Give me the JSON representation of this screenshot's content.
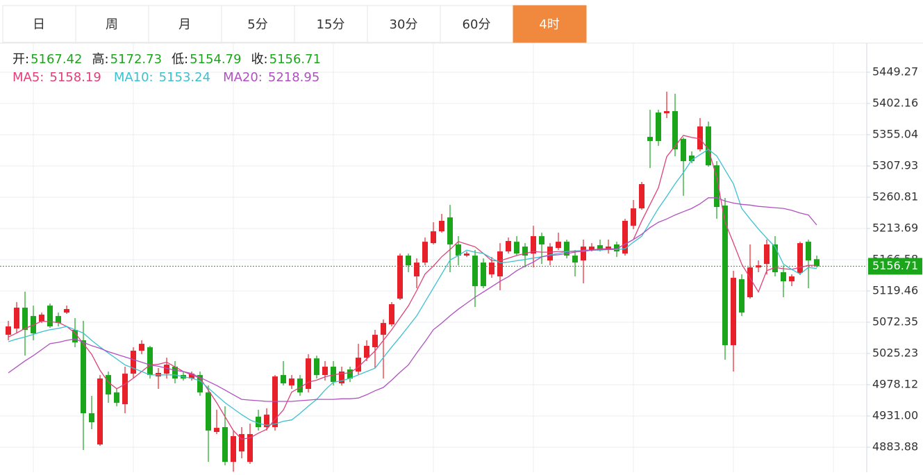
{
  "chart_data": {
    "type": "candlestick",
    "tabs": [
      "日",
      "周",
      "月",
      "5分",
      "15分",
      "30分",
      "60分",
      "4时"
    ],
    "active_tab": 7,
    "ohlc_labels": [
      "开:",
      "高:",
      "低:",
      "收:"
    ],
    "ylim": [
      4846.19,
      5493.24
    ],
    "yticks": [
      4883.88,
      {
        "value": 4931,
        "label": "4931.00"
      },
      4978.12,
      5025.23,
      5072.35,
      5119.46,
      5166.58,
      5213.69,
      5260.81,
      5307.93,
      5355.04,
      5402.16,
      5449.27
    ],
    "grid": true,
    "up_color": "#e8202a",
    "down_color": "#1aa51a",
    "candles": {
      "open": [
        5053.4,
        5062.9,
        5094.3,
        5081.7,
        5073.3,
        5097.4,
        5081.7,
        5086.9,
        5060.8,
        5045.1,
        4935.1,
        4888.0,
        4992.7,
        4966.5,
        4948.7,
        4994.8,
        5029.4,
        5034.6,
        4990.6,
        4994.8,
        5005.3,
        4992.7,
        4987.5,
        4992.7,
        4966.5,
        4906.9,
        4914.2,
        4861.8,
        4877.5,
        4861.8,
        4929.9,
        4914.2,
        4914.2,
        4992.7,
        4977.0,
        4987.5,
        4971.8,
        5017.8,
        4992.7,
        5005.3,
        4980.2,
        5001.1,
        4998.0,
        5018.9,
        5034.6,
        5053.4,
        5069.2,
        5107.9,
        5172.8,
        5141.4,
        5162.3,
        5191.6,
        5209.4,
        5230.4,
        5189.6,
        5172.8,
        5172.8,
        5162.3,
        5144.5,
        5141.4,
        5179.1,
        5193.7,
        5186.4,
        5175.9,
        5202.1,
        5165.5,
        5184.3,
        5193.7,
        5172.8,
        5165.5,
        5181.2,
        5188.5,
        5181.2,
        5189.6,
        5175.9,
        5217.8,
        5244.0,
        5351.8,
        5388.5,
        5387.4,
        5390.6,
        5348.7,
        5323.6,
        5333.0,
        5367.5,
        5308.9,
        5248.2,
        5037.7,
        5137.2,
        5110.0,
        5155.0,
        5160.2,
        5189.6,
        5147.7,
        5134.1,
        5146.6,
        5193.7,
        5167.42
      ],
      "high": [
        5074.4,
        5102.7,
        5118.4,
        5097.4,
        5086.9,
        5100.6,
        5086.9,
        5097.4,
        5078.6,
        5074.4,
        4961.3,
        4992.7,
        4998.0,
        4971.8,
        5005.3,
        5034.6,
        5045.1,
        5036.7,
        5003.2,
        5018.9,
        5013.7,
        4998.0,
        4998.0,
        4998.0,
        4977.0,
        4940.4,
        4945.6,
        4909.0,
        4914.2,
        4919.4,
        4940.4,
        4942.5,
        4992.7,
        5013.7,
        4992.7,
        4992.7,
        5024.1,
        5022.0,
        5013.7,
        5013.7,
        5005.3,
        5005.3,
        5039.8,
        5045.1,
        5060.8,
        5076.5,
        5102.7,
        5175.9,
        5175.9,
        5168.6,
        5200.0,
        5223.1,
        5235.6,
        5249.2,
        5202.1,
        5179.1,
        5181.2,
        5168.6,
        5170.7,
        5191.6,
        5200.0,
        5202.1,
        5191.6,
        5217.8,
        5207.4,
        5191.6,
        5207.4,
        5196.9,
        5181.2,
        5196.9,
        5191.6,
        5196.9,
        5196.9,
        5193.7,
        5228.3,
        5256.6,
        5283.8,
        5392.7,
        5392.7,
        5419.9,
        5416.8,
        5350.8,
        5329.9,
        5380.1,
        5374.9,
        5315.2,
        5259.7,
        5149.8,
        5144.5,
        5189.6,
        5165.5,
        5196.9,
        5202.1,
        5158.1,
        5144.5,
        5193.7,
        5196.9,
        5172.73
      ],
      "low": [
        5045.1,
        5055.5,
        5022.0,
        5045.1,
        5071.2,
        5063.9,
        5066.0,
        5084.9,
        5034.6,
        4879.6,
        4911.1,
        4885.9,
        4950.8,
        4945.6,
        4935.1,
        4987.5,
        5024.1,
        4987.5,
        4971.8,
        4987.5,
        4980.2,
        4984.3,
        4984.3,
        4961.3,
        4861.8,
        4903.7,
        4856.6,
        4847.0,
        4867.1,
        4858.7,
        4909.0,
        4909.0,
        4909.0,
        4977.0,
        4971.8,
        4961.3,
        4966.5,
        4987.5,
        4984.3,
        4977.0,
        4977.0,
        4982.2,
        4992.7,
        5013.7,
        5003.2,
        4987.5,
        5066.0,
        5105.8,
        5147.7,
        5123.6,
        5158.1,
        5189.6,
        5207.4,
        5147.7,
        5158.1,
        5170.7,
        5095.3,
        5123.6,
        5139.3,
        5120.5,
        5175.9,
        5172.8,
        5155.0,
        5155.0,
        5160.2,
        5158.1,
        5181.2,
        5168.6,
        5141.4,
        5130.9,
        5179.1,
        5179.1,
        5175.9,
        5170.7,
        5172.8,
        5212.6,
        5241.9,
        5304.7,
        5338.2,
        5380.1,
        5322.5,
        5262.8,
        5312.1,
        5329.9,
        5306.8,
        5228.3,
        5015.8,
        4998.0,
        5081.7,
        5107.9,
        5147.7,
        5144.5,
        5141.4,
        5110.0,
        5126.7,
        5143.5,
        5123.6,
        5154.79
      ],
      "close": [
        5066.0,
        5094.3,
        5060.8,
        5055.5,
        5083.8,
        5066.0,
        5071.2,
        5092.2,
        5041.9,
        4935.1,
        4921.5,
        4987.5,
        4963.4,
        4950.8,
        4994.8,
        5029.4,
        5039.8,
        4992.7,
        4995.9,
        5008.4,
        4987.5,
        4987.5,
        4994.8,
        4966.5,
        4909.0,
        4913.1,
        4861.8,
        4900.6,
        4903.7,
        4903.7,
        4914.2,
        4933.0,
        4990.6,
        4980.2,
        4987.5,
        4966.5,
        5017.8,
        4992.7,
        5005.3,
        4982.2,
        4998.0,
        4987.5,
        5018.9,
        5036.7,
        5053.4,
        5071.2,
        5099.5,
        5172.8,
        5158.1,
        5162.3,
        5193.7,
        5209.4,
        5225.2,
        5189.6,
        5172.8,
        5175.9,
        5126.7,
        5126.7,
        5162.3,
        5179.1,
        5194.8,
        5175.9,
        5172.8,
        5202.1,
        5189.6,
        5186.4,
        5193.7,
        5172.8,
        5162.3,
        5186.4,
        5186.4,
        5181.2,
        5186.4,
        5179.1,
        5225.2,
        5244.0,
        5280.6,
        5345.6,
        5345.6,
        5390.6,
        5333.0,
        5315.2,
        5315.2,
        5367.5,
        5308.9,
        5246.1,
        5037.7,
        5139.3,
        5086.9,
        5155.0,
        5158.1,
        5189.6,
        5147.7,
        5134.1,
        5141.4,
        5191.6,
        5165.5,
        5156.71
      ]
    },
    "series": [
      {
        "name": "MA5:",
        "color": "#e0407a",
        "values": [
          5050,
          5056,
          5063,
          5068,
          5074,
          5073,
          5072,
          5066,
          5056,
          5040,
          5024,
          5000,
          4982,
          4972,
          4979,
          4988,
          4998,
          5008,
          5009,
          5012,
          5005,
          4998,
          4993,
          4988,
          4970,
          4951,
          4930,
          4909,
          4896,
          4898,
          4905,
          4911,
          4926,
          4940,
          4967,
          4974,
          4982,
          4985,
          4990,
          4993,
          4995,
          4996,
          5005,
          5017,
          5029,
          5045,
          5061,
          5079,
          5097,
          5120,
          5145,
          5157,
          5171,
          5182,
          5194,
          5190,
          5186,
          5176,
          5165,
          5165,
          5169,
          5173,
          5176,
          5179,
          5178,
          5178,
          5179,
          5179,
          5179,
          5179,
          5181,
          5183,
          5183,
          5183,
          5190,
          5197,
          5225,
          5250,
          5275,
          5322,
          5338,
          5354,
          5351,
          5349,
          5333,
          5291,
          5223,
          5192,
          5160,
          5139,
          5118,
          5150,
          5155,
          5153,
          5152,
          5155,
          5158,
          5158.19
        ]
      },
      {
        "name": "MA10:",
        "color": "#3cc0d0",
        "values": [
          5043,
          5047,
          5050,
          5054,
          5058,
          5061,
          5063,
          5066,
          5061,
          5056,
          5045,
          5035,
          5026,
          5017,
          5008,
          5003,
          4998,
          4993,
          4993,
          4993,
          4993,
          4990,
          4988,
          4984,
          4973,
          4962,
          4951,
          4942,
          4933,
          4925,
          4920,
          4917,
          4919,
          4923,
          4925,
          4935,
          4946,
          4956,
          4970,
          4982,
          4984,
          4988,
          4993,
          4998,
          5003,
          5019,
          5035,
          5050,
          5066,
          5082,
          5103,
          5124,
          5145,
          5166,
          5173,
          5181,
          5178,
          5176,
          5169,
          5162,
          5163,
          5165,
          5167,
          5169,
          5171,
          5174,
          5176,
          5179,
          5180,
          5180,
          5181,
          5181,
          5182,
          5182,
          5183,
          5193,
          5202,
          5223,
          5244,
          5262,
          5281,
          5298,
          5317,
          5325,
          5333,
          5323,
          5302,
          5281,
          5244,
          5228,
          5213,
          5199,
          5186,
          5160,
          5152,
          5145,
          5155,
          5153.24
        ]
      },
      {
        "name": "MA20:",
        "color": "#b050c0",
        "values": [
          4996,
          5005,
          5014,
          5022,
          5031,
          5040,
          5042,
          5045,
          5047,
          5042,
          5037,
          5033,
          5028,
          5024,
          5020,
          5016,
          5012,
          5008,
          5006,
          5003,
          5000,
          4998,
          4995,
          4989,
          4983,
          4977,
          4970,
          4963,
          4956,
          4955,
          4954,
          4953,
          4953,
          4953,
          4953,
          4954,
          4955,
          4956,
          4956,
          4956,
          4957,
          4957,
          4958,
          4963,
          4969,
          4974,
          4985,
          4997,
          5008,
          5026,
          5043,
          5061,
          5071,
          5082,
          5092,
          5101,
          5110,
          5118,
          5126,
          5134,
          5141,
          5150,
          5157,
          5163,
          5171,
          5173,
          5174,
          5176,
          5178,
          5181,
          5181,
          5182,
          5182,
          5183,
          5190,
          5197,
          5205,
          5215,
          5223,
          5228,
          5234,
          5239,
          5244,
          5251,
          5260,
          5260,
          5255,
          5252,
          5250,
          5249,
          5247,
          5246,
          5245,
          5244,
          5241,
          5237,
          5234,
          5218.95
        ]
      }
    ]
  }
}
